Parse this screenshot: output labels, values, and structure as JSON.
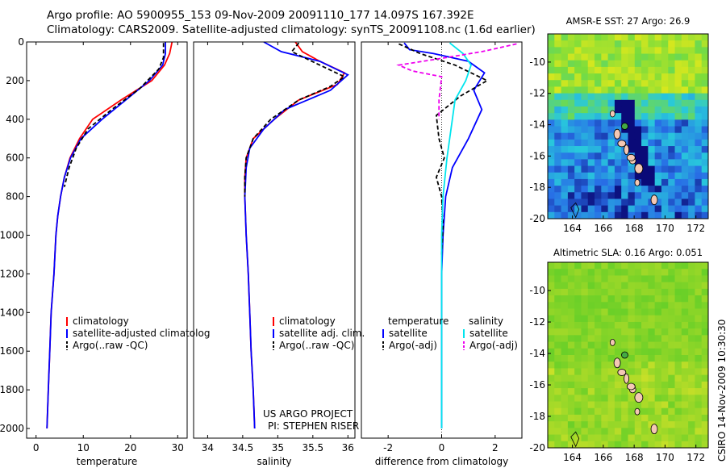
{
  "header": {
    "line1": "Argo profile: AO 5900955_153 09-Nov-2009 20091110_177 14.097S 167.392E",
    "line2": "Climatology: CARS2009. Satellite-adjusted climatology: synTS_20091108.nc (1.6d earlier)"
  },
  "colors": {
    "climatology": "#ff0000",
    "satellite": "#0000ff",
    "argo": "#000000",
    "satellite_salinity": "#00e5ee",
    "argo_salinity_adj": "#ee00ee"
  },
  "side_label": "CSIRO 14-Nov-2009 10:30:30",
  "credits": {
    "line1": "US ARGO PROJECT",
    "line2": "PI: STEPHEN RISER"
  },
  "legends": {
    "temperature": [
      "climatology",
      "satellite-adjusted climatolog",
      "Argo(..raw -QC)"
    ],
    "salinity": [
      "climatology",
      "satellite adj. clim.",
      "Argo(..raw -QC)"
    ],
    "difference": {
      "temp_head": "temperature",
      "sal_head": "salinity",
      "temp_items": [
        "satellite",
        "Argo(-adj)"
      ],
      "sal_items": [
        "satellite",
        "Argo(-adj)"
      ]
    }
  },
  "chart_data": [
    {
      "id": "temperature",
      "type": "line",
      "xlabel": "temperature",
      "xlim": [
        -2,
        32
      ],
      "xticks": [
        0,
        10,
        20,
        30
      ],
      "ylim": [
        2050,
        0
      ],
      "yticks": [
        0,
        200,
        400,
        600,
        800,
        1000,
        1200,
        1400,
        1600,
        1800,
        2000
      ],
      "series": [
        {
          "name": "climatology",
          "color": "#ff0000",
          "dash": "",
          "points": [
            [
              28.8,
              0
            ],
            [
              28.3,
              60
            ],
            [
              27.2,
              120
            ],
            [
              24.5,
              200
            ],
            [
              18,
              300
            ],
            [
              12,
              400
            ],
            [
              9.2,
              500
            ],
            [
              7.2,
              600
            ],
            [
              6,
              700
            ],
            [
              5.2,
              800
            ],
            [
              4.6,
              900
            ],
            [
              4.2,
              1000
            ],
            [
              3.8,
              1200
            ],
            [
              3.2,
              1400
            ],
            [
              2.9,
              1600
            ],
            [
              2.6,
              1800
            ],
            [
              2.3,
              2000
            ]
          ]
        },
        {
          "name": "satellite-adjusted climatology",
          "color": "#0000ff",
          "dash": "",
          "points": [
            [
              27.4,
              0
            ],
            [
              27.4,
              60
            ],
            [
              26.8,
              120
            ],
            [
              24,
              200
            ],
            [
              19,
              300
            ],
            [
              14,
              400
            ],
            [
              9.5,
              500
            ],
            [
              7.3,
              600
            ],
            [
              6,
              700
            ],
            [
              5.2,
              800
            ],
            [
              4.6,
              900
            ],
            [
              4.2,
              1000
            ],
            [
              3.8,
              1200
            ],
            [
              3.2,
              1400
            ],
            [
              2.9,
              1600
            ],
            [
              2.6,
              1800
            ],
            [
              2.3,
              2000
            ]
          ]
        },
        {
          "name": "Argo(..raw -QC)",
          "color": "#000000",
          "dash": "5,3",
          "points": [
            [
              27,
              5
            ],
            [
              27,
              80
            ],
            [
              26,
              140
            ],
            [
              22,
              240
            ],
            [
              16,
              350
            ],
            [
              11,
              450
            ],
            [
              8.5,
              550
            ],
            [
              7,
              650
            ],
            [
              6,
              750
            ]
          ]
        }
      ]
    },
    {
      "id": "salinity",
      "type": "line",
      "xlabel": "salinity",
      "xlim": [
        33.8,
        36.1
      ],
      "xticks": [
        34,
        34.5,
        35,
        35.5,
        36
      ],
      "ylim": [
        2050,
        0
      ],
      "yticks": [],
      "series": [
        {
          "name": "climatology",
          "color": "#ff0000",
          "dash": "",
          "points": [
            [
              35.25,
              0
            ],
            [
              35.35,
              50
            ],
            [
              35.6,
              100
            ],
            [
              35.95,
              160
            ],
            [
              35.85,
              220
            ],
            [
              35.3,
              300
            ],
            [
              34.95,
              400
            ],
            [
              34.65,
              500
            ],
            [
              34.55,
              600
            ],
            [
              34.53,
              700
            ],
            [
              34.53,
              800
            ],
            [
              34.55,
              1000
            ],
            [
              34.58,
              1200
            ],
            [
              34.6,
              1400
            ],
            [
              34.62,
              1600
            ],
            [
              34.65,
              1800
            ],
            [
              34.67,
              2000
            ]
          ]
        },
        {
          "name": "satellite adj. clim.",
          "color": "#0000ff",
          "dash": "",
          "points": [
            [
              34.8,
              0
            ],
            [
              35.05,
              50
            ],
            [
              35.6,
              100
            ],
            [
              36,
              170
            ],
            [
              35.75,
              250
            ],
            [
              35.1,
              350
            ],
            [
              34.8,
              450
            ],
            [
              34.6,
              550
            ],
            [
              34.55,
              650
            ],
            [
              34.53,
              800
            ],
            [
              34.55,
              1000
            ],
            [
              34.58,
              1200
            ],
            [
              34.6,
              1400
            ],
            [
              34.62,
              1600
            ],
            [
              34.65,
              1800
            ],
            [
              34.67,
              2000
            ]
          ]
        },
        {
          "name": "Argo(..raw -QC)",
          "color": "#000000",
          "dash": "5,3",
          "points": [
            [
              35.3,
              5
            ],
            [
              35.2,
              50
            ],
            [
              35.6,
              120
            ],
            [
              35.95,
              180
            ],
            [
              35.75,
              230
            ],
            [
              35.3,
              300
            ],
            [
              34.9,
              400
            ],
            [
              34.65,
              500
            ],
            [
              34.55,
              600
            ],
            [
              34.53,
              700
            ],
            [
              34.53,
              800
            ]
          ]
        }
      ]
    },
    {
      "id": "difference",
      "type": "line",
      "xlabel": "difference from climatology",
      "xlim": [
        -3,
        3
      ],
      "xticks": [
        -2,
        0,
        2
      ],
      "ylim": [
        2050,
        0
      ],
      "yticks": [],
      "series": [
        {
          "name": "temperature satellite",
          "color": "#0000ff",
          "dash": "",
          "points": [
            [
              -1.4,
              5
            ],
            [
              -1.2,
              40
            ],
            [
              -0.3,
              60
            ],
            [
              1.0,
              100
            ],
            [
              1.6,
              160
            ],
            [
              1.2,
              250
            ],
            [
              1.5,
              350
            ],
            [
              1.0,
              500
            ],
            [
              0.4,
              650
            ],
            [
              0.15,
              800
            ],
            [
              0.05,
              1000
            ],
            [
              0,
              1200
            ],
            [
              0,
              1500
            ],
            [
              0,
              2000
            ]
          ]
        },
        {
          "name": "temperature Argo(-adj)",
          "color": "#000000",
          "dash": "5,3",
          "points": [
            [
              -1.6,
              10
            ],
            [
              -0.8,
              60
            ],
            [
              0.5,
              120
            ],
            [
              1.7,
              200
            ],
            [
              0.7,
              280
            ],
            [
              -0.2,
              380
            ],
            [
              -0.1,
              500
            ],
            [
              0.1,
              600
            ],
            [
              -0.2,
              700
            ],
            [
              0,
              800
            ],
            [
              0.05,
              950
            ],
            [
              0,
              1100
            ]
          ]
        },
        {
          "name": "salinity satellite",
          "color": "#00e5ee",
          "dash": "",
          "points": [
            [
              0.3,
              5
            ],
            [
              0.8,
              60
            ],
            [
              1.1,
              120
            ],
            [
              0.9,
              200
            ],
            [
              0.5,
              300
            ],
            [
              0.4,
              400
            ],
            [
              0.2,
              600
            ],
            [
              0.05,
              800
            ],
            [
              0,
              1000
            ],
            [
              0,
              1200
            ],
            [
              0,
              1500
            ],
            [
              0,
              2000
            ]
          ]
        },
        {
          "name": "salinity Argo(-adj)",
          "color": "#ee00ee",
          "dash": "5,3",
          "points": [
            [
              2.8,
              10
            ],
            [
              1.5,
              50
            ],
            [
              0.2,
              80
            ],
            [
              -1.6,
              120
            ],
            [
              -1.1,
              150
            ],
            [
              0,
              180
            ],
            [
              -0.1,
              300
            ],
            [
              -0.1,
              400
            ]
          ]
        }
      ]
    }
  ],
  "maps": [
    {
      "id": "sst",
      "title": "AMSR-E SST: 27 Argo: 26.9",
      "xticks": [
        164,
        166,
        168,
        170,
        172
      ],
      "yticks": [
        -10,
        -12,
        -14,
        -16,
        -18,
        -20
      ],
      "xlim": [
        162.4,
        172.8
      ],
      "ylim": [
        -20,
        -8.2
      ]
    },
    {
      "id": "sla",
      "title": "Altimetric SLA: 0.16 Argo: 0.051",
      "xticks": [
        164,
        166,
        168,
        170,
        172
      ],
      "yticks": [
        -10,
        -12,
        -14,
        -16,
        -18,
        -20
      ],
      "xlim": [
        162.4,
        172.8
      ],
      "ylim": [
        -20,
        -8.2
      ]
    }
  ]
}
